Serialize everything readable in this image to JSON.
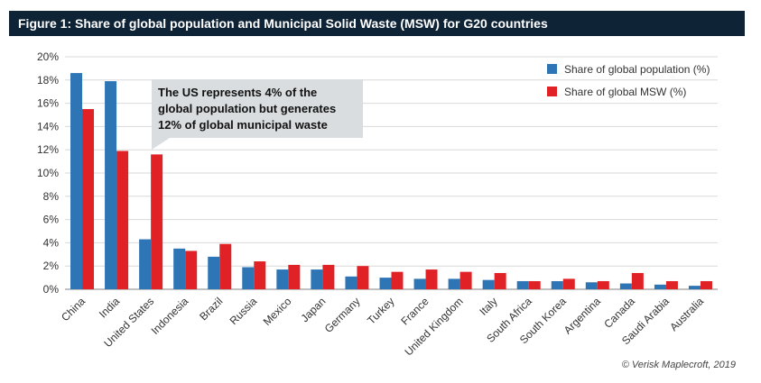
{
  "header": {
    "title": "Figure 1: Share of global population and Municipal Solid Waste (MSW) for G20 countries"
  },
  "credit": "© Verisk Maplecroft, 2019",
  "colors": {
    "population": "#2e75b6",
    "msw": "#e02226",
    "header_bg": "#0e2336",
    "annotation_bg": "#d9dde0"
  },
  "chart_data": {
    "type": "bar",
    "categories": [
      "China",
      "India",
      "United States",
      "Indonesia",
      "Brazil",
      "Russia",
      "Mexico",
      "Japan",
      "Germany",
      "Turkey",
      "France",
      "United Kingdom",
      "Italy",
      "South Africa",
      "South Korea",
      "Argentina",
      "Canada",
      "Saudi Arabia",
      "Australia"
    ],
    "series": [
      {
        "name": "Share of global population (%)",
        "values": [
          18.6,
          17.9,
          4.3,
          3.5,
          2.8,
          1.9,
          1.7,
          1.7,
          1.1,
          1.0,
          0.9,
          0.9,
          0.8,
          0.7,
          0.7,
          0.6,
          0.5,
          0.4,
          0.3
        ]
      },
      {
        "name": "Share of global MSW (%)",
        "values": [
          15.5,
          11.9,
          11.6,
          3.3,
          3.9,
          2.4,
          2.1,
          2.1,
          2.0,
          1.5,
          1.7,
          1.5,
          1.4,
          0.7,
          0.9,
          0.7,
          1.4,
          0.7,
          0.7
        ]
      }
    ],
    "ylim": [
      0,
      20
    ],
    "yticks": [
      "0%",
      "2%",
      "4%",
      "6%",
      "8%",
      "10%",
      "12%",
      "14%",
      "16%",
      "18%",
      "20%"
    ],
    "grid": true,
    "legend": "top-right",
    "annotation": {
      "lines": [
        "The US represents 4% of the",
        "global population but generates",
        "12% of global municipal waste"
      ]
    }
  }
}
